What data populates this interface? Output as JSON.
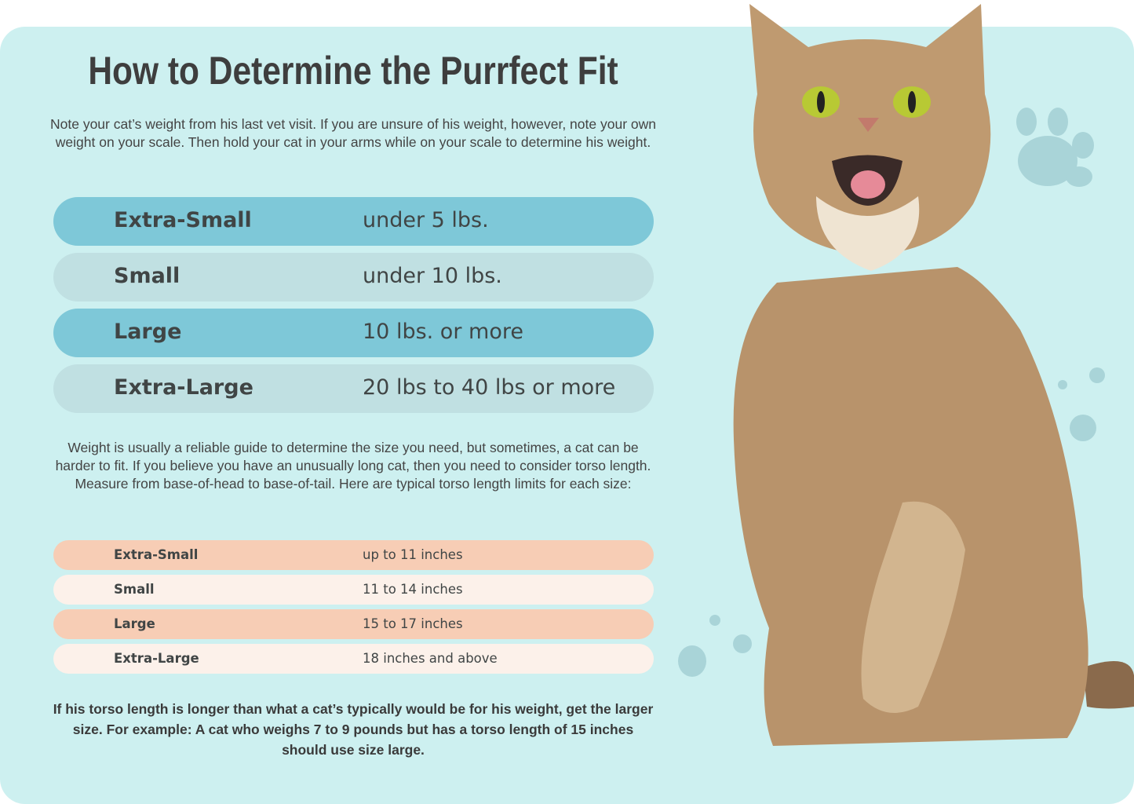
{
  "title": "How to Determine the Purrfect Fit",
  "intro": "Note your cat’s weight from his last vet visit. If you are unsure of his weight, however, note your own weight on your scale. Then hold your cat in your arms while on your scale to determine his weight.",
  "weight_table": [
    {
      "size": "Extra-Small",
      "weight": "under 5 lbs."
    },
    {
      "size": "Small",
      "weight": "under 10 lbs."
    },
    {
      "size": "Large",
      "weight": "10 lbs. or more"
    },
    {
      "size": "Extra-Large",
      "weight": "20 lbs to 40 lbs or more"
    }
  ],
  "torso_intro": "Weight is usually a reliable guide to determine the size you need, but sometimes, a cat can be harder to fit. If you believe you have an unusually long cat, then you need to consider torso length. Measure from base-of-head to base-of-tail. Here are typical torso length limits for each size:",
  "torso_table": [
    {
      "size": "Extra-Small",
      "length": "up to 11 inches"
    },
    {
      "size": "Small",
      "length": "11 to 14 inches"
    },
    {
      "size": "Large",
      "length": "15 to 17 inches"
    },
    {
      "size": "Extra-Large",
      "length": "18 inches and above"
    }
  ],
  "note": "If his torso length is longer than what a cat’s typically would be for his weight, get the larger size. For example: A cat who weighs 7 to 9 pounds but has a torso length of 15 inches should use size large.",
  "colors": {
    "panel": "#cdf0f0",
    "weight_dark": "#7ec8d8",
    "weight_light": "#c0e0e2",
    "torso_dark": "#f7cdb5",
    "torso_light": "#fcf1ea"
  },
  "icons": [
    "cat-photo",
    "paw-print-icon"
  ]
}
